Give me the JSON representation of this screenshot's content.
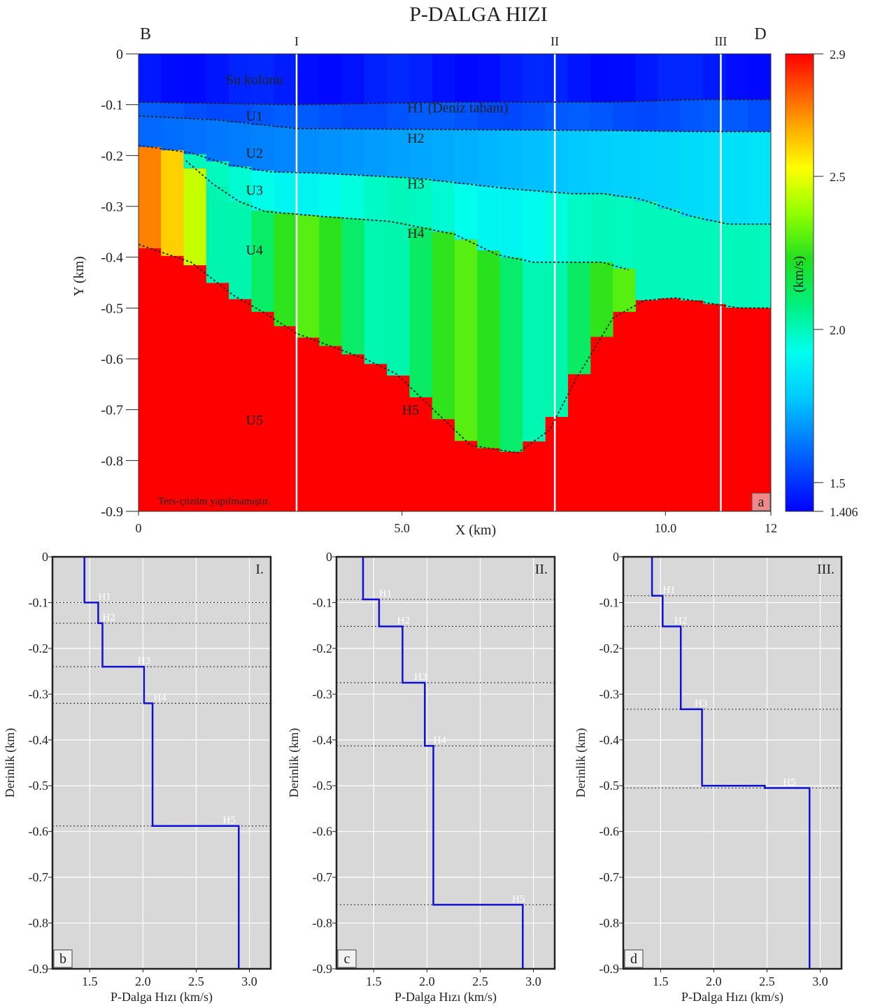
{
  "figure_title": "P-DALGA HIZI",
  "chart_data": [
    {
      "panel": "a",
      "type": "heatmap",
      "title": "P-DALGA HIZI",
      "xlabel": "X (km)",
      "ylabel": "Y (km)",
      "xlim": [
        0,
        12
      ],
      "ylim": [
        -0.9,
        0
      ],
      "x_ticks": [
        "0",
        "5.0",
        "10.0",
        "12"
      ],
      "y_ticks": [
        "0",
        "-0.1",
        "-0.2",
        "-0.3",
        "-0.4",
        "-0.5",
        "-0.6",
        "-0.7",
        "-0.8",
        "-0.9"
      ],
      "corner_labels": [
        "B",
        "D"
      ],
      "profile_lines": [
        {
          "label": "I",
          "x": 3.0
        },
        {
          "label": "II",
          "x": 7.9
        },
        {
          "label": "III",
          "x": 11.05
        }
      ],
      "unit_labels": [
        {
          "text": "Su kolonu",
          "x": 2.2,
          "y": -0.05
        },
        {
          "text": "U1",
          "x": 2.2,
          "y": -0.122
        },
        {
          "text": "U2",
          "x": 2.2,
          "y": -0.195
        },
        {
          "text": "U3",
          "x": 2.2,
          "y": -0.268
        },
        {
          "text": "U4",
          "x": 2.2,
          "y": -0.385
        },
        {
          "text": "U5",
          "x": 2.2,
          "y": -0.72
        }
      ],
      "horizon_labels": [
        {
          "text": "H1 (Deniz tabanı)",
          "x": 5.1,
          "y": -0.105
        },
        {
          "text": "H2",
          "x": 5.1,
          "y": -0.165
        },
        {
          "text": "H3",
          "x": 5.1,
          "y": -0.255
        },
        {
          "text": "H4",
          "x": 5.1,
          "y": -0.352
        },
        {
          "text": "H5",
          "x": 5.0,
          "y": -0.7
        }
      ],
      "note": "Ters-çözüm yapılmamıştır.",
      "panel_label": "a",
      "horizons": [
        {
          "name": "H1",
          "x": [
            0,
            3,
            6,
            9,
            10.6,
            12
          ],
          "y": [
            -0.095,
            -0.1,
            -0.095,
            -0.095,
            -0.09,
            -0.09
          ]
        },
        {
          "name": "H2",
          "x": [
            0,
            1.5,
            3,
            6,
            9,
            10.6,
            12
          ],
          "y": [
            -0.122,
            -0.13,
            -0.147,
            -0.149,
            -0.151,
            -0.153,
            -0.153
          ]
        },
        {
          "name": "H3",
          "x": [
            0,
            1,
            1.7,
            2.5,
            3.5,
            5.3,
            7,
            8.2,
            8.8,
            9.5,
            10.5,
            11.2,
            12
          ],
          "y": [
            -0.18,
            -0.195,
            -0.218,
            -0.232,
            -0.235,
            -0.245,
            -0.265,
            -0.275,
            -0.275,
            -0.285,
            -0.32,
            -0.335,
            -0.335
          ]
        },
        {
          "name": "H4",
          "x": [
            0.9,
            1.4,
            1.9,
            2.4,
            3.5,
            4.8,
            6,
            6.8,
            7.5,
            8.3,
            8.8,
            9.3
          ],
          "y": [
            -0.21,
            -0.255,
            -0.29,
            -0.31,
            -0.32,
            -0.33,
            -0.355,
            -0.395,
            -0.41,
            -0.41,
            -0.41,
            -0.425
          ]
        },
        {
          "name": "H5",
          "x": [
            0,
            1,
            1.8,
            2.4,
            3,
            4.3,
            4.9,
            5.6,
            6.3,
            7.2,
            7.8,
            8.3,
            9,
            9.6,
            10.2,
            10.8,
            11.4,
            12
          ],
          "y": [
            -0.375,
            -0.41,
            -0.475,
            -0.51,
            -0.55,
            -0.6,
            -0.63,
            -0.7,
            -0.77,
            -0.785,
            -0.74,
            -0.64,
            -0.52,
            -0.485,
            -0.48,
            -0.49,
            -0.5,
            -0.5
          ]
        }
      ],
      "colorbar": {
        "label": "(km/s)",
        "min": 1.406,
        "max": 2.9,
        "ticks": [
          "2.9",
          "2.5",
          "2.0",
          "1.5",
          "1.406"
        ],
        "tick_values": [
          2.9,
          2.5,
          2.0,
          1.5,
          1.406
        ]
      },
      "unit_velocities": {
        "water": 1.45,
        "U1": 1.56,
        "U2_range": [
          1.6,
          1.85
        ],
        "U3_range": [
          1.9,
          2.0
        ],
        "U4_range": [
          2.0,
          2.3
        ],
        "U5": 2.9
      }
    },
    {
      "panel": "b",
      "type": "line",
      "profile_label": "I.",
      "panel_label": "b",
      "xlabel": "P-Dalga Hızı (km/s)",
      "ylabel": "Derinlik (km)",
      "xlim": [
        1.15,
        3.2
      ],
      "ylim": [
        -0.9,
        0
      ],
      "x_ticks": [
        "1.5",
        "2.0",
        "2.5",
        "3.0"
      ],
      "y_ticks": [
        "0",
        "-0.1",
        "-0.2",
        "-0.3",
        "-0.4",
        "-0.5",
        "-0.6",
        "-0.7",
        "-0.8",
        "-0.9"
      ],
      "series": [
        {
          "x": [
            1.45,
            1.45,
            1.58,
            1.58,
            1.62,
            1.62,
            2.01,
            2.01,
            2.09,
            2.09,
            2.9,
            2.9
          ],
          "y": [
            0,
            -0.1,
            -0.1,
            -0.145,
            -0.145,
            -0.24,
            -0.24,
            -0.32,
            -0.32,
            -0.588,
            -0.588,
            -0.9
          ]
        }
      ],
      "horizons": [
        {
          "name": "H1",
          "y": -0.1,
          "label_x": 1.58
        },
        {
          "name": "H2",
          "y": -0.145,
          "label_x": 1.62
        },
        {
          "name": "H3",
          "y": -0.24,
          "label_x": 1.95
        },
        {
          "name": "H4",
          "y": -0.32,
          "label_x": 2.1
        },
        {
          "name": "H5",
          "y": -0.588,
          "label_x": 2.75
        }
      ]
    },
    {
      "panel": "c",
      "type": "line",
      "profile_label": "II.",
      "panel_label": "c",
      "xlabel": "P-Dalga Hızı (km/s)",
      "ylabel": "Derinlik (km)",
      "xlim": [
        1.15,
        3.2
      ],
      "ylim": [
        -0.9,
        0
      ],
      "x_ticks": [
        "1.5",
        "2.0",
        "2.5",
        "3.0"
      ],
      "y_ticks": [
        "0",
        "-0.1",
        "-0.2",
        "-0.3",
        "-0.4",
        "-0.5",
        "-0.6",
        "-0.7",
        "-0.8",
        "-0.9"
      ],
      "series": [
        {
          "x": [
            1.4,
            1.4,
            1.55,
            1.55,
            1.77,
            1.77,
            1.98,
            1.98,
            2.06,
            2.06,
            2.9,
            2.9
          ],
          "y": [
            0,
            -0.093,
            -0.093,
            -0.152,
            -0.152,
            -0.275,
            -0.275,
            -0.413,
            -0.413,
            -0.76,
            -0.76,
            -0.9
          ]
        }
      ],
      "horizons": [
        {
          "name": "H1",
          "y": -0.093,
          "label_x": 1.55
        },
        {
          "name": "H2",
          "y": -0.152,
          "label_x": 1.72
        },
        {
          "name": "H3",
          "y": -0.275,
          "label_x": 1.88
        },
        {
          "name": "H4",
          "y": -0.413,
          "label_x": 2.06
        },
        {
          "name": "H5",
          "y": -0.76,
          "label_x": 2.8
        }
      ]
    },
    {
      "panel": "d",
      "type": "line",
      "profile_label": "III.",
      "panel_label": "d",
      "xlabel": "P-Dalga Hızı (km/s)",
      "ylabel": "Derinlik (km)",
      "xlim": [
        1.15,
        3.2
      ],
      "ylim": [
        -0.9,
        0
      ],
      "x_ticks": [
        "1.5",
        "2.0",
        "2.5",
        "3.0"
      ],
      "y_ticks": [
        "0",
        "-0.1",
        "-0.2",
        "-0.3",
        "-0.4",
        "-0.5",
        "-0.6",
        "-0.7",
        "-0.8",
        "-0.9"
      ],
      "series": [
        {
          "x": [
            1.42,
            1.42,
            1.52,
            1.52,
            1.69,
            1.69,
            1.89,
            1.89,
            2.48,
            2.48,
            2.9,
            2.9
          ],
          "y": [
            0,
            -0.085,
            -0.085,
            -0.152,
            -0.152,
            -0.333,
            -0.333,
            -0.5,
            -0.5,
            -0.505,
            -0.505,
            -0.9
          ]
        }
      ],
      "horizons": [
        {
          "name": "H1",
          "y": -0.085,
          "label_x": 1.52
        },
        {
          "name": "H2",
          "y": -0.152,
          "label_x": 1.63
        },
        {
          "name": "H3",
          "y": -0.333,
          "label_x": 1.82
        },
        {
          "name": "H5",
          "y": -0.505,
          "label_x": 2.65
        }
      ]
    }
  ]
}
